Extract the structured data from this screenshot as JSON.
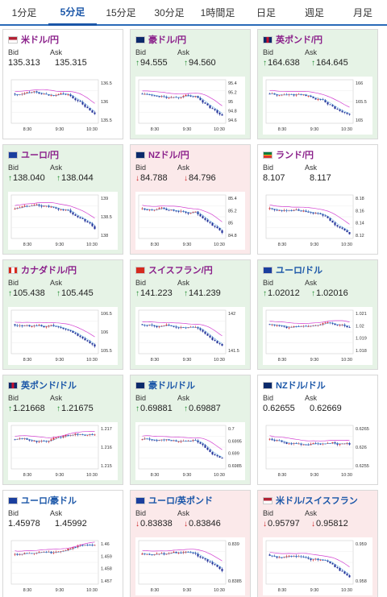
{
  "timeframes": [
    "1分足",
    "5分足",
    "15分足",
    "30分足",
    "1時間足",
    "日足",
    "週足",
    "月足"
  ],
  "active_timeframe": "5分足",
  "labels": {
    "bid": "Bid",
    "ask": "Ask"
  },
  "colors": {
    "up_bg": "#e6f3e6",
    "down_bg": "#fbe9ea",
    "up_arrow": "#1c8a2b",
    "down_arrow": "#cc2222",
    "jpy_pair": "#8a1f8a",
    "usd_pair": "#1a56a8",
    "ma_line": "#d23fd0",
    "bull_candle": "#d9262c",
    "bear_candle": "#23329a"
  },
  "cards": [
    {
      "pair": "米ドル/円",
      "flag": "us",
      "quote": "jpy",
      "state": "flat",
      "bid": "135.313",
      "ask": "135.315",
      "arrow": "",
      "chart_data": {
        "type": "candlestick",
        "x_ticks": [
          "8:30",
          "9:30",
          "10:30"
        ],
        "y_ticks": [
          "136.5",
          "136",
          "135.5"
        ],
        "trend": "down",
        "indicator": "moving average"
      }
    },
    {
      "pair": "豪ドル/円",
      "flag": "au",
      "quote": "jpy",
      "state": "up",
      "bid": "94.555",
      "ask": "94.560",
      "arrow": "up",
      "chart_data": {
        "type": "candlestick",
        "x_ticks": [
          "8:30",
          "9:30",
          "10:30"
        ],
        "y_ticks": [
          "95.4",
          "95.2",
          "95",
          "94.8",
          "94.6"
        ],
        "trend": "down",
        "indicator": "moving average"
      }
    },
    {
      "pair": "英ポンド/円",
      "flag": "gb",
      "quote": "jpy",
      "state": "up",
      "bid": "164.638",
      "ask": "164.645",
      "arrow": "up",
      "chart_data": {
        "type": "candlestick",
        "x_ticks": [
          "8:30",
          "9:30",
          "10:30"
        ],
        "y_ticks": [
          "166",
          "165.5",
          "165"
        ],
        "trend": "down",
        "indicator": "moving average"
      }
    },
    {
      "pair": "ユーロ/円",
      "flag": "eu",
      "quote": "jpy",
      "state": "up",
      "bid": "138.040",
      "ask": "138.044",
      "arrow": "up",
      "chart_data": {
        "type": "candlestick",
        "x_ticks": [
          "8:30",
          "9:30",
          "10:30"
        ],
        "y_ticks": [
          "139",
          "138.5",
          "138"
        ],
        "trend": "down",
        "indicator": "moving average"
      }
    },
    {
      "pair": "NZドル/円",
      "flag": "nz",
      "quote": "jpy",
      "state": "down",
      "bid": "84.788",
      "ask": "84.796",
      "arrow": "down",
      "chart_data": {
        "type": "candlestick",
        "x_ticks": [
          "8:30",
          "9:30",
          "10:30"
        ],
        "y_ticks": [
          "85.4",
          "85.2",
          "85",
          "84.8"
        ],
        "trend": "down",
        "indicator": "moving average"
      }
    },
    {
      "pair": "ランド/円",
      "flag": "za",
      "quote": "jpy",
      "state": "flat",
      "bid": "8.107",
      "ask": "8.117",
      "arrow": "",
      "chart_data": {
        "type": "candlestick",
        "x_ticks": [
          "8:30",
          "9:30",
          "10:30"
        ],
        "y_ticks": [
          "8.18",
          "8.16",
          "8.14",
          "8.12"
        ],
        "trend": "down",
        "indicator": "moving average"
      }
    },
    {
      "pair": "カナダドル/円",
      "flag": "ca",
      "quote": "jpy",
      "state": "up",
      "bid": "105.438",
      "ask": "105.445",
      "arrow": "up",
      "chart_data": {
        "type": "candlestick",
        "x_ticks": [
          "8:30",
          "9:30",
          "10:30"
        ],
        "y_ticks": [
          "106.5",
          "106",
          "105.5"
        ],
        "trend": "down",
        "indicator": "moving average"
      }
    },
    {
      "pair": "スイスフラン/円",
      "flag": "ch",
      "quote": "jpy",
      "state": "up",
      "bid": "141.223",
      "ask": "141.239",
      "arrow": "up",
      "chart_data": {
        "type": "candlestick",
        "x_ticks": [
          "8:30",
          "9:30",
          "10:30"
        ],
        "y_ticks": [
          "142",
          "141.5"
        ],
        "trend": "down",
        "indicator": "moving average"
      }
    },
    {
      "pair": "ユーロ/ドル",
      "flag": "eu",
      "quote": "usd",
      "state": "up",
      "bid": "1.02012",
      "ask": "1.02016",
      "arrow": "up",
      "chart_data": {
        "type": "candlestick",
        "x_ticks": [
          "8:30",
          "9:30",
          "10:30"
        ],
        "y_ticks": [
          "1.021",
          "1.02",
          "1.019",
          "1.018"
        ],
        "trend": "mixed",
        "indicator": "moving average"
      }
    },
    {
      "pair": "英ポンド/ドル",
      "flag": "gb",
      "quote": "usd",
      "state": "up",
      "bid": "1.21668",
      "ask": "1.21675",
      "arrow": "up",
      "chart_data": {
        "type": "candlestick",
        "x_ticks": [
          "8:30",
          "9:30",
          "10:30"
        ],
        "y_ticks": [
          "1.217",
          "1.216",
          "1.215"
        ],
        "trend": "mixed",
        "indicator": "moving average"
      }
    },
    {
      "pair": "豪ドル/ドル",
      "flag": "au",
      "quote": "usd",
      "state": "up",
      "bid": "0.69881",
      "ask": "0.69887",
      "arrow": "up",
      "chart_data": {
        "type": "candlestick",
        "x_ticks": [
          "8:30",
          "9:30",
          "10:30"
        ],
        "y_ticks": [
          "0.7",
          "0.6995",
          "0.699",
          "0.6985"
        ],
        "trend": "down",
        "indicator": "moving average"
      }
    },
    {
      "pair": "NZドル/ドル",
      "flag": "nz",
      "quote": "usd",
      "state": "flat",
      "bid": "0.62655",
      "ask": "0.62669",
      "arrow": "",
      "chart_data": {
        "type": "candlestick",
        "x_ticks": [
          "8:30",
          "9:30",
          "10:30"
        ],
        "y_ticks": [
          "0.6265",
          "0.626",
          "0.6255"
        ],
        "trend": "mixed",
        "indicator": "moving average"
      }
    },
    {
      "pair": "ユーロ/豪ドル",
      "flag": "eu",
      "quote": "usd",
      "state": "flat",
      "bid": "1.45978",
      "ask": "1.45992",
      "arrow": "",
      "chart_data": {
        "type": "candlestick",
        "x_ticks": [
          "8:30",
          "9:30",
          "10:30"
        ],
        "y_ticks": [
          "1.46",
          "1.459",
          "1.458",
          "1.457"
        ],
        "trend": "up",
        "indicator": "moving average"
      }
    },
    {
      "pair": "ユーロ/英ポンド",
      "flag": "eu",
      "quote": "usd",
      "state": "down",
      "bid": "0.83838",
      "ask": "0.83846",
      "arrow": "down",
      "chart_data": {
        "type": "candlestick",
        "x_ticks": [
          "8:30",
          "9:30",
          "10:30"
        ],
        "y_ticks": [
          "0.839",
          "0.8385"
        ],
        "trend": "down",
        "indicator": "moving average"
      }
    },
    {
      "pair": "米ドル/スイスフラン",
      "flag": "us",
      "quote": "usd",
      "state": "down",
      "bid": "0.95797",
      "ask": "0.95812",
      "arrow": "down",
      "chart_data": {
        "type": "candlestick",
        "x_ticks": [
          "8:30",
          "9:30",
          "10:30"
        ],
        "y_ticks": [
          "0.959",
          "0.958"
        ],
        "trend": "down",
        "indicator": "moving average"
      }
    }
  ]
}
